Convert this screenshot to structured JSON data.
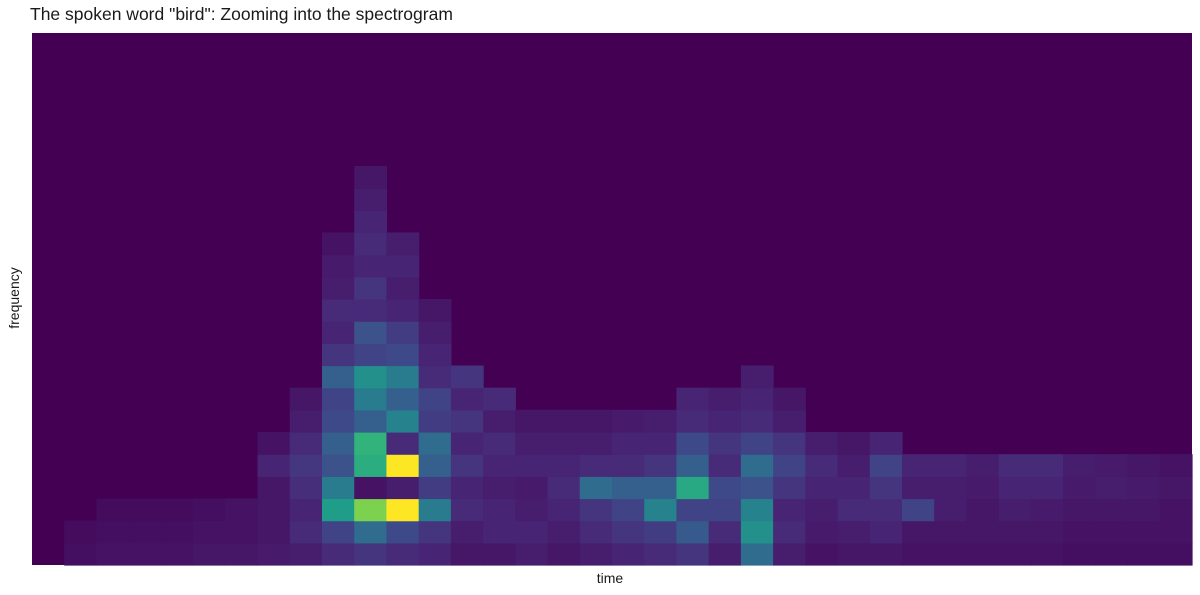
{
  "chart_data": {
    "type": "heatmap",
    "title": "The spoken word \"bird\": Zooming into the spectrogram",
    "xlabel": "time",
    "ylabel": "frequency",
    "colormap": "viridis",
    "colormap_stops": [
      "#440154",
      "#482878",
      "#3e4a89",
      "#31688e",
      "#26828e",
      "#1f9e89",
      "#35b779",
      "#6ece58",
      "#b5de2b",
      "#fde725"
    ],
    "background_value": 0,
    "time_bins": 36,
    "frequency_bins": 24,
    "value_range": [
      0,
      1
    ],
    "x_ticks": "none",
    "y_ticks": "none",
    "grid": false,
    "legend": "none",
    "cells": [
      [
        1,
        0,
        0.04
      ],
      [
        1,
        1,
        0.03
      ],
      [
        2,
        0,
        0.05
      ],
      [
        2,
        1,
        0.04
      ],
      [
        2,
        2,
        0.03
      ],
      [
        3,
        0,
        0.05
      ],
      [
        3,
        1,
        0.04
      ],
      [
        3,
        2,
        0.03
      ],
      [
        4,
        0,
        0.05
      ],
      [
        4,
        1,
        0.04
      ],
      [
        4,
        2,
        0.03
      ],
      [
        5,
        0,
        0.06
      ],
      [
        5,
        1,
        0.05
      ],
      [
        5,
        2,
        0.04
      ],
      [
        6,
        0,
        0.06
      ],
      [
        6,
        1,
        0.05
      ],
      [
        6,
        2,
        0.05
      ],
      [
        7,
        0,
        0.07
      ],
      [
        7,
        1,
        0.06
      ],
      [
        7,
        2,
        0.06
      ],
      [
        7,
        3,
        0.06
      ],
      [
        7,
        4,
        0.1
      ],
      [
        7,
        5,
        0.05
      ],
      [
        8,
        0,
        0.08
      ],
      [
        8,
        1,
        0.12
      ],
      [
        8,
        2,
        0.1
      ],
      [
        8,
        3,
        0.13
      ],
      [
        8,
        4,
        0.16
      ],
      [
        8,
        5,
        0.12
      ],
      [
        8,
        6,
        0.08
      ],
      [
        8,
        7,
        0.06
      ],
      [
        9,
        0,
        0.12
      ],
      [
        9,
        1,
        0.2
      ],
      [
        9,
        2,
        0.55
      ],
      [
        9,
        3,
        0.42
      ],
      [
        9,
        4,
        0.25
      ],
      [
        9,
        5,
        0.3
      ],
      [
        9,
        6,
        0.22
      ],
      [
        9,
        7,
        0.2
      ],
      [
        9,
        8,
        0.3
      ],
      [
        9,
        9,
        0.15
      ],
      [
        9,
        10,
        0.1
      ],
      [
        9,
        11,
        0.12
      ],
      [
        9,
        12,
        0.08
      ],
      [
        9,
        13,
        0.07
      ],
      [
        9,
        14,
        0.05
      ],
      [
        10,
        0,
        0.15
      ],
      [
        10,
        1,
        0.35
      ],
      [
        10,
        2,
        0.8
      ],
      [
        10,
        3,
        0.05
      ],
      [
        10,
        4,
        0.62
      ],
      [
        10,
        5,
        0.65
      ],
      [
        10,
        6,
        0.3
      ],
      [
        10,
        7,
        0.42
      ],
      [
        10,
        8,
        0.5
      ],
      [
        10,
        9,
        0.2
      ],
      [
        10,
        10,
        0.25
      ],
      [
        10,
        11,
        0.12
      ],
      [
        10,
        12,
        0.15
      ],
      [
        10,
        13,
        0.1
      ],
      [
        10,
        14,
        0.12
      ],
      [
        10,
        15,
        0.1
      ],
      [
        10,
        16,
        0.08
      ],
      [
        10,
        17,
        0.06
      ],
      [
        11,
        0,
        0.12
      ],
      [
        11,
        1,
        0.22
      ],
      [
        11,
        2,
        1.0
      ],
      [
        11,
        3,
        0.08
      ],
      [
        11,
        4,
        1.0
      ],
      [
        11,
        5,
        0.12
      ],
      [
        11,
        6,
        0.45
      ],
      [
        11,
        7,
        0.3
      ],
      [
        11,
        8,
        0.42
      ],
      [
        11,
        9,
        0.22
      ],
      [
        11,
        10,
        0.18
      ],
      [
        11,
        11,
        0.1
      ],
      [
        11,
        12,
        0.08
      ],
      [
        11,
        13,
        0.1
      ],
      [
        11,
        14,
        0.08
      ],
      [
        12,
        0,
        0.1
      ],
      [
        12,
        1,
        0.15
      ],
      [
        12,
        2,
        0.42
      ],
      [
        12,
        3,
        0.18
      ],
      [
        12,
        4,
        0.3
      ],
      [
        12,
        5,
        0.35
      ],
      [
        12,
        6,
        0.18
      ],
      [
        12,
        7,
        0.2
      ],
      [
        12,
        8,
        0.12
      ],
      [
        12,
        9,
        0.1
      ],
      [
        12,
        10,
        0.08
      ],
      [
        12,
        11,
        0.06
      ],
      [
        13,
        0,
        0.06
      ],
      [
        13,
        1,
        0.08
      ],
      [
        13,
        2,
        0.12
      ],
      [
        13,
        3,
        0.1
      ],
      [
        13,
        4,
        0.15
      ],
      [
        13,
        5,
        0.1
      ],
      [
        13,
        6,
        0.15
      ],
      [
        13,
        7,
        0.1
      ],
      [
        13,
        8,
        0.15
      ],
      [
        14,
        0,
        0.06
      ],
      [
        14,
        1,
        0.1
      ],
      [
        14,
        2,
        0.1
      ],
      [
        14,
        3,
        0.08
      ],
      [
        14,
        4,
        0.1
      ],
      [
        14,
        5,
        0.12
      ],
      [
        14,
        6,
        0.08
      ],
      [
        14,
        7,
        0.12
      ],
      [
        15,
        0,
        0.08
      ],
      [
        15,
        1,
        0.1
      ],
      [
        15,
        2,
        0.08
      ],
      [
        15,
        3,
        0.07
      ],
      [
        15,
        4,
        0.1
      ],
      [
        15,
        5,
        0.08
      ],
      [
        15,
        6,
        0.06
      ],
      [
        16,
        0,
        0.06
      ],
      [
        16,
        1,
        0.08
      ],
      [
        16,
        2,
        0.1
      ],
      [
        16,
        3,
        0.12
      ],
      [
        16,
        4,
        0.1
      ],
      [
        16,
        5,
        0.08
      ],
      [
        16,
        6,
        0.06
      ],
      [
        17,
        0,
        0.08
      ],
      [
        17,
        1,
        0.12
      ],
      [
        17,
        2,
        0.15
      ],
      [
        17,
        3,
        0.35
      ],
      [
        17,
        4,
        0.12
      ],
      [
        17,
        5,
        0.08
      ],
      [
        17,
        6,
        0.06
      ],
      [
        18,
        0,
        0.1
      ],
      [
        18,
        1,
        0.15
      ],
      [
        18,
        2,
        0.2
      ],
      [
        18,
        3,
        0.3
      ],
      [
        18,
        4,
        0.12
      ],
      [
        18,
        5,
        0.1
      ],
      [
        18,
        6,
        0.07
      ],
      [
        19,
        0,
        0.12
      ],
      [
        19,
        1,
        0.18
      ],
      [
        19,
        2,
        0.45
      ],
      [
        19,
        3,
        0.3
      ],
      [
        19,
        4,
        0.15
      ],
      [
        19,
        5,
        0.1
      ],
      [
        19,
        6,
        0.08
      ],
      [
        20,
        0,
        0.15
      ],
      [
        20,
        1,
        0.28
      ],
      [
        20,
        2,
        0.2
      ],
      [
        20,
        3,
        0.6
      ],
      [
        20,
        4,
        0.3
      ],
      [
        20,
        5,
        0.22
      ],
      [
        20,
        6,
        0.12
      ],
      [
        20,
        7,
        0.1
      ],
      [
        21,
        0,
        0.08
      ],
      [
        21,
        1,
        0.12
      ],
      [
        21,
        2,
        0.2
      ],
      [
        21,
        3,
        0.22
      ],
      [
        21,
        4,
        0.12
      ],
      [
        21,
        5,
        0.15
      ],
      [
        21,
        6,
        0.1
      ],
      [
        21,
        7,
        0.08
      ],
      [
        22,
        0,
        0.35
      ],
      [
        22,
        1,
        0.5
      ],
      [
        22,
        2,
        0.45
      ],
      [
        22,
        3,
        0.25
      ],
      [
        22,
        4,
        0.35
      ],
      [
        22,
        5,
        0.2
      ],
      [
        22,
        6,
        0.12
      ],
      [
        22,
        7,
        0.1
      ],
      [
        22,
        8,
        0.08
      ],
      [
        23,
        0,
        0.08
      ],
      [
        23,
        1,
        0.12
      ],
      [
        23,
        2,
        0.1
      ],
      [
        23,
        3,
        0.15
      ],
      [
        23,
        4,
        0.2
      ],
      [
        23,
        5,
        0.15
      ],
      [
        23,
        6,
        0.08
      ],
      [
        23,
        7,
        0.06
      ],
      [
        24,
        0,
        0.05
      ],
      [
        24,
        1,
        0.07
      ],
      [
        24,
        2,
        0.08
      ],
      [
        24,
        3,
        0.1
      ],
      [
        24,
        4,
        0.12
      ],
      [
        24,
        5,
        0.08
      ],
      [
        25,
        0,
        0.06
      ],
      [
        25,
        1,
        0.08
      ],
      [
        25,
        2,
        0.12
      ],
      [
        25,
        3,
        0.1
      ],
      [
        25,
        4,
        0.08
      ],
      [
        25,
        5,
        0.06
      ],
      [
        26,
        0,
        0.06
      ],
      [
        26,
        1,
        0.1
      ],
      [
        26,
        2,
        0.12
      ],
      [
        26,
        3,
        0.15
      ],
      [
        26,
        4,
        0.2
      ],
      [
        26,
        5,
        0.1
      ],
      [
        27,
        0,
        0.05
      ],
      [
        27,
        1,
        0.06
      ],
      [
        27,
        2,
        0.2
      ],
      [
        27,
        3,
        0.08
      ],
      [
        27,
        4,
        0.1
      ],
      [
        28,
        0,
        0.05
      ],
      [
        28,
        1,
        0.06
      ],
      [
        28,
        2,
        0.08
      ],
      [
        28,
        3,
        0.08
      ],
      [
        28,
        4,
        0.1
      ],
      [
        29,
        0,
        0.05
      ],
      [
        29,
        1,
        0.06
      ],
      [
        29,
        2,
        0.06
      ],
      [
        29,
        3,
        0.07
      ],
      [
        29,
        4,
        0.08
      ],
      [
        30,
        0,
        0.05
      ],
      [
        30,
        1,
        0.06
      ],
      [
        30,
        2,
        0.08
      ],
      [
        30,
        3,
        0.1
      ],
      [
        30,
        4,
        0.12
      ],
      [
        31,
        0,
        0.05
      ],
      [
        31,
        1,
        0.06
      ],
      [
        31,
        2,
        0.07
      ],
      [
        31,
        3,
        0.1
      ],
      [
        31,
        4,
        0.12
      ],
      [
        32,
        0,
        0.04
      ],
      [
        32,
        1,
        0.05
      ],
      [
        32,
        2,
        0.06
      ],
      [
        32,
        3,
        0.07
      ],
      [
        32,
        4,
        0.08
      ],
      [
        33,
        0,
        0.04
      ],
      [
        33,
        1,
        0.05
      ],
      [
        33,
        2,
        0.06
      ],
      [
        33,
        3,
        0.08
      ],
      [
        33,
        4,
        0.07
      ],
      [
        34,
        0,
        0.04
      ],
      [
        34,
        1,
        0.05
      ],
      [
        34,
        2,
        0.06
      ],
      [
        34,
        3,
        0.07
      ],
      [
        34,
        4,
        0.06
      ],
      [
        35,
        0,
        0.04
      ],
      [
        35,
        1,
        0.05
      ],
      [
        35,
        2,
        0.05
      ],
      [
        35,
        3,
        0.06
      ],
      [
        35,
        4,
        0.05
      ]
    ]
  }
}
